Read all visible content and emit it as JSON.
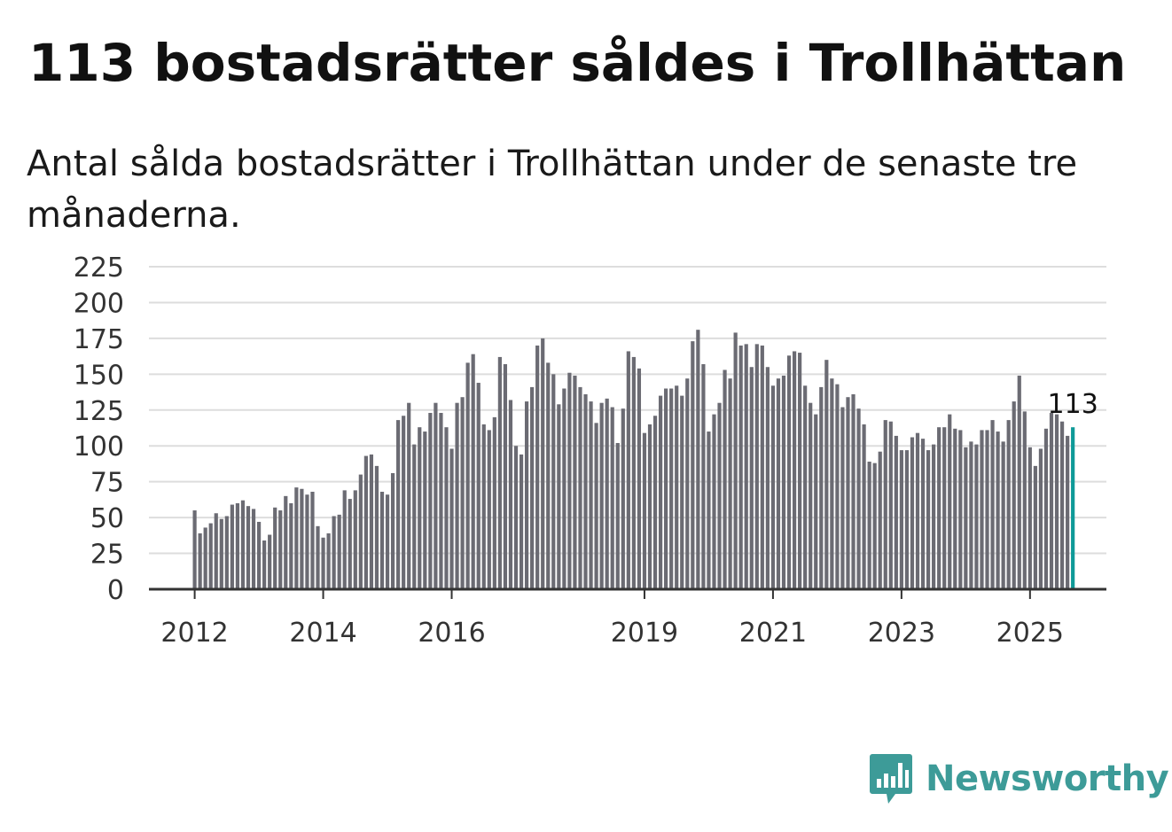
{
  "header": {
    "title": "113 bostadsrätter såldes i Trollhättan",
    "subtitle": "Antal sålda bostadsrätter i Trollhättan under de senaste tre månaderna."
  },
  "brand": {
    "name": "Newsworthy",
    "icon": "bar-chart-speech-bubble-icon",
    "color": "#3d9b98"
  },
  "colors": {
    "bar": "#6b6b73",
    "highlight": "#0f9a98",
    "grid": "#dddddd",
    "axis": "#333333"
  },
  "chart_data": {
    "type": "bar",
    "title": "113 bostadsrätter såldes i Trollhättan",
    "subtitle": "Antal sålda bostadsrätter i Trollhättan under de senaste tre månaderna.",
    "xlabel": "",
    "ylabel": "",
    "ylim": [
      0,
      225
    ],
    "y_ticks": [
      0,
      25,
      50,
      75,
      100,
      125,
      150,
      175,
      200,
      225
    ],
    "x_tick_labels": [
      {
        "label": "2012",
        "index": 0
      },
      {
        "label": "2014",
        "index": 24
      },
      {
        "label": "2016",
        "index": 48
      },
      {
        "label": "2019",
        "index": 84
      },
      {
        "label": "2021",
        "index": 108
      },
      {
        "label": "2023",
        "index": 132
      },
      {
        "label": "2025",
        "index": 156
      }
    ],
    "grid": true,
    "frequency": "monthly",
    "start": "2012-01",
    "last_label": "113",
    "values": [
      55,
      39,
      43,
      46,
      53,
      49,
      51,
      59,
      60,
      62,
      58,
      56,
      47,
      34,
      38,
      57,
      55,
      65,
      60,
      71,
      70,
      66,
      68,
      44,
      36,
      39,
      51,
      52,
      69,
      63,
      69,
      80,
      93,
      94,
      86,
      68,
      66,
      81,
      118,
      121,
      130,
      101,
      113,
      110,
      123,
      130,
      123,
      113,
      98,
      130,
      134,
      158,
      164,
      144,
      115,
      111,
      120,
      162,
      157,
      132,
      100,
      94,
      131,
      141,
      170,
      175,
      158,
      150,
      129,
      140,
      151,
      149,
      141,
      136,
      131,
      116,
      130,
      133,
      127,
      102,
      126,
      166,
      162,
      154,
      109,
      115,
      121,
      135,
      140,
      140,
      142,
      135,
      147,
      173,
      181,
      157,
      110,
      122,
      130,
      153,
      147,
      179,
      170,
      171,
      155,
      171,
      170,
      155,
      142,
      147,
      149,
      163,
      166,
      165,
      142,
      130,
      122,
      141,
      160,
      147,
      143,
      127,
      134,
      136,
      126,
      115,
      89,
      88,
      96,
      118,
      117,
      107,
      97,
      97,
      106,
      109,
      105,
      97,
      101,
      113,
      113,
      122,
      112,
      111,
      99,
      103,
      101,
      111,
      111,
      118,
      110,
      103,
      118,
      131,
      149,
      124,
      99,
      86,
      98,
      112,
      123,
      122,
      117,
      107,
      113
    ]
  }
}
